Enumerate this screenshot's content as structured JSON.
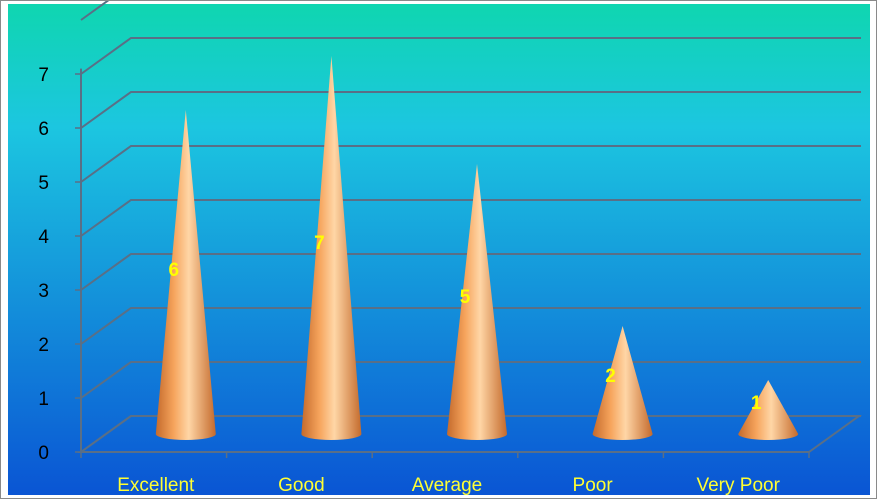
{
  "chart_data": {
    "type": "bar",
    "bar_shape": "cone",
    "categories": [
      "Excellent",
      "Good",
      "Average",
      "Poor",
      "Very Poor"
    ],
    "values": [
      6,
      7,
      5,
      2,
      1
    ],
    "data_labels": [
      "6",
      "7",
      "5",
      "2",
      "1"
    ],
    "title": "",
    "xlabel": "",
    "ylabel": "",
    "ylim": [
      0,
      7
    ],
    "yticks": [
      "0",
      "1",
      "2",
      "3",
      "4",
      "5",
      "6",
      "7"
    ],
    "grid": true,
    "legend": "none",
    "colors": {
      "background_top": "#0fd6b0",
      "background_mid": "#1cc6e0",
      "background_bottom": "#0a55d4",
      "cone_light": "#ffd6a6",
      "cone_mid": "#f6a45c",
      "cone_dark": "#c46a2c",
      "data_label": "#ffff00",
      "category_label": "#ffff33",
      "tick_label": "#000000",
      "gridline": "#5a6f86"
    }
  }
}
